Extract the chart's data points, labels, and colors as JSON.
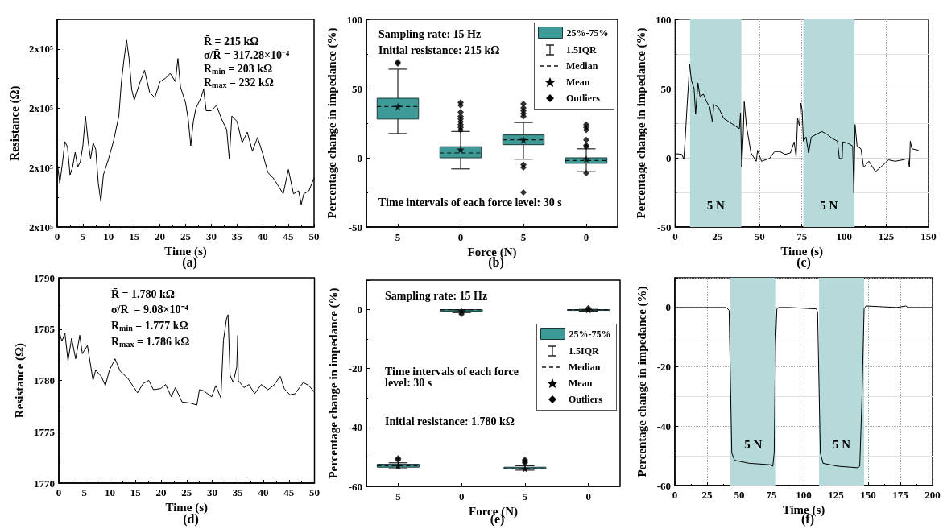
{
  "chart_data": [
    {
      "type": "line",
      "title": "(a)",
      "xlabel": "Time (s)",
      "ylabel": "Resistance (Ω)",
      "marker": "none",
      "grid": false,
      "xlim": [
        0,
        50
      ],
      "xticks": [
        0,
        5,
        10,
        15,
        20,
        25,
        30,
        35,
        40,
        45,
        50
      ],
      "ylim": [
        200000,
        235000
      ],
      "yticks": [
        {
          "value": 200000,
          "label": "2x10⁵"
        },
        {
          "value": 210000,
          "label": "2x10⁵"
        },
        {
          "value": 220000,
          "label": "2x10⁵"
        },
        {
          "value": 230000,
          "label": "2x10⁵"
        }
      ],
      "annotations": [
        "R̄ = 215 kΩ",
        "σ/R̄ = 317.28×10⁻⁴",
        "R$_{min}$ = 203 kΩ",
        "R$_{max}$ = 232 kΩ"
      ],
      "series": [
        {
          "color": "#000000",
          "x": [
            0,
            0.5,
            1,
            1.5,
            2,
            2.5,
            3,
            3.5,
            4,
            4.5,
            5,
            5.5,
            6,
            6.5,
            7,
            7.5,
            8,
            8.5,
            9,
            10,
            11,
            12,
            12.5,
            13,
            13.5,
            14,
            14.5,
            15,
            16,
            17,
            18,
            19,
            20,
            21,
            22,
            23,
            23.5,
            24,
            25,
            25.5,
            26,
            26.5,
            27,
            28,
            28.5,
            29,
            30,
            31,
            32,
            33,
            33.5,
            34,
            35,
            36,
            37,
            38,
            39,
            40,
            41,
            42,
            43,
            44,
            45,
            46,
            47,
            47.5,
            48,
            49,
            50
          ],
          "values": [
            211000,
            207400,
            210600,
            214400,
            213500,
            208800,
            210100,
            212600,
            210100,
            211000,
            213700,
            218700,
            214600,
            211500,
            214200,
            213100,
            207400,
            204300,
            208800,
            211500,
            214600,
            218700,
            224500,
            228200,
            231500,
            228400,
            223200,
            221400,
            224100,
            226400,
            222700,
            221800,
            224500,
            225000,
            225900,
            224500,
            228400,
            223600,
            220900,
            218200,
            213700,
            217800,
            220000,
            221800,
            223200,
            219600,
            219600,
            220500,
            218200,
            216400,
            211500,
            218700,
            217800,
            214200,
            216000,
            212800,
            215100,
            212400,
            209200,
            208300,
            207000,
            205600,
            209700,
            205600,
            206100,
            203800,
            205600,
            206100,
            208300
          ]
        }
      ]
    },
    {
      "type": "box",
      "title": "(b)",
      "xlabel": "Force (N)",
      "ylabel": "Percentage change in impedance (%)",
      "grid": false,
      "legend": "top right",
      "categories": [
        "5",
        "0",
        "5",
        "0"
      ],
      "ylim": [
        -50,
        100
      ],
      "yticks": [
        -50,
        0,
        50,
        100
      ],
      "annotations": [
        "Sampling rate: 15 Hz",
        "Initial resistance: 215 kΩ",
        "Time intervals of each force level: 30 s",
        "1.5IQR",
        "Median",
        "Mean",
        "Outliers"
      ],
      "series": [
        {
          "name": "25%-75%",
          "color": "#3d9a97",
          "boxes": [
            {
              "low": 17.5,
              "q1": 28,
              "median": 37,
              "q3": 43,
              "high": 64,
              "mean": 37,
              "outliers": [
                68,
                69
              ]
            },
            {
              "low": -8,
              "q1": 0,
              "median": 3.5,
              "q3": 8,
              "high": 19,
              "mean": 6,
              "outliers": [
                20,
                22,
                24,
                26,
                28,
                30,
                33,
                38,
                40
              ]
            },
            {
              "low": -1,
              "q1": 9.5,
              "median": 13,
              "q3": 16.5,
              "high": 25.5,
              "mean": 13,
              "outliers": [
                -25,
                -7,
                -5,
                30,
                32,
                34,
                36,
                39
              ]
            },
            {
              "low": -10,
              "q1": -4,
              "median": -2,
              "q3": 0,
              "high": 6.5,
              "mean": -1,
              "outliers": [
                -11,
                8,
                9,
                13,
                20,
                22,
                24
              ]
            }
          ]
        }
      ]
    },
    {
      "type": "line",
      "title": "(c)",
      "xlabel": "Time (s)",
      "ylabel": "Percentage change in impedance (%)",
      "marker": "none",
      "grid": true,
      "xlim": [
        0,
        150
      ],
      "xticks": [
        0,
        25,
        50,
        75,
        100,
        125,
        150
      ],
      "ylim": [
        -50,
        100
      ],
      "yticks": [
        -50,
        0,
        50,
        100
      ],
      "bands": [
        {
          "axis": "x",
          "from": 8.8,
          "to": 39.2,
          "label": "5 N",
          "color": "#b6dada"
        },
        {
          "axis": "x",
          "from": 75.9,
          "to": 106.2,
          "label": "5 N",
          "color": "#b6dada"
        }
      ],
      "series": [
        {
          "color": "#000000",
          "x": [
            0,
            3.9,
            5.1,
            5.9,
            7,
            8,
            8.5,
            9.6,
            11.2,
            12.1,
            13.5,
            14.7,
            16.7,
            18.6,
            20.5,
            22,
            22.9,
            25.6,
            28.7,
            31.8,
            35.6,
            38,
            38.7,
            39.4,
            40.3,
            40.9,
            42.2,
            44.9,
            48,
            48.8,
            51.1,
            55.8,
            58.9,
            62,
            65.1,
            68.2,
            70.5,
            71.6,
            72.5,
            73.6,
            74.4,
            75.2,
            75.9,
            77.5,
            79,
            80.6,
            83.7,
            86.8,
            89.9,
            93,
            96.1,
            97.2,
            98.9,
            99.2,
            102.3,
            105.1,
            105.8,
            106.5,
            107.7,
            110,
            111.6,
            114.7,
            118.6,
            122.4,
            126.3,
            130.2,
            134.8,
            137.9,
            138.7,
            139.2,
            140.2,
            144.1
          ],
          "values": [
            3,
            2.5,
            -1,
            13,
            36.5,
            56,
            68,
            56,
            50,
            31.5,
            54,
            44,
            46,
            40.5,
            36.5,
            26,
            38.5,
            36.5,
            28.5,
            26,
            23,
            21,
            32.5,
            -7,
            17,
            40.5,
            23,
            3.5,
            -2.5,
            5.5,
            -2.5,
            -0.5,
            4.5,
            4.5,
            2.5,
            3.5,
            11.5,
            0.5,
            28.5,
            23,
            39.5,
            34.5,
            12,
            15,
            3.5,
            15,
            17,
            19,
            17,
            14,
            12,
            -0.5,
            -0.5,
            11.5,
            10.5,
            8.5,
            -25.5,
            24,
            8.5,
            6.5,
            -7,
            -2.5,
            -10,
            -6,
            -1.5,
            -2.5,
            -1.5,
            -0.5,
            -7,
            12,
            6.5,
            5.5
          ]
        }
      ]
    },
    {
      "type": "line",
      "title": "(d)",
      "xlabel": "Time (s)",
      "ylabel": "Resistance (Ω)",
      "marker": "none",
      "grid": false,
      "xlim": [
        0,
        50
      ],
      "xticks": [
        0,
        5,
        10,
        15,
        20,
        25,
        30,
        35,
        40,
        45,
        50
      ],
      "ylim": [
        1770,
        1790
      ],
      "yticks": [
        1770,
        1775,
        1780,
        1785,
        1790
      ],
      "annotations": [
        "R̄ = 1.780 kΩ",
        "σ/R̄  = 9.08×10⁻⁴",
        "R$_{min}$ = 1.777 kΩ",
        "R$_{max}$ = 1.786 kΩ"
      ],
      "series": [
        {
          "color": "#000000",
          "x": [
            0,
            0.6,
            1.2,
            1.8,
            2.5,
            3.3,
            4.1,
            4.6,
            5.6,
            6.7,
            7.2,
            8.3,
            9.1,
            9.9,
            11,
            12,
            13.5,
            15.4,
            16.5,
            17.6,
            18.5,
            19.9,
            20.9,
            22,
            22.8,
            24.1,
            25.7,
            27,
            27.5,
            28.3,
            29.9,
            30.7,
            31.7,
            32.2,
            32.8,
            33.1,
            33.5,
            34.1,
            34.8,
            35,
            35.1,
            36.2,
            37.2,
            38.3,
            39.6,
            40.9,
            42,
            43.3,
            44.1,
            45.2,
            46.2,
            47.8,
            48.9,
            49.9
          ],
          "values": [
            1784.9,
            1783.8,
            1784.6,
            1781.9,
            1784.1,
            1782.1,
            1784.4,
            1782.6,
            1783.4,
            1780,
            1781,
            1780.4,
            1779.5,
            1781,
            1782.1,
            1780.9,
            1780.2,
            1778.8,
            1779.7,
            1780,
            1779.1,
            1779.2,
            1779.6,
            1778.4,
            1779.3,
            1777.9,
            1777.8,
            1777.6,
            1779.1,
            1779,
            1778.4,
            1779.5,
            1778.3,
            1783.9,
            1786,
            1786.4,
            1780.5,
            1779.8,
            1781.3,
            1784.4,
            1780,
            1779.3,
            1779.6,
            1778.7,
            1779.6,
            1779.1,
            1779.5,
            1780.4,
            1779.2,
            1778.6,
            1778.7,
            1779.8,
            1779.5,
            1778.9
          ]
        }
      ]
    },
    {
      "type": "box",
      "title": "(e)",
      "xlabel": "Force (N)",
      "ylabel": "Percentage change in impedance (%)",
      "grid": false,
      "legend": "right",
      "categories": [
        "5",
        "0",
        "5",
        "0"
      ],
      "ylim": [
        -60,
        10
      ],
      "yticks": [
        -60,
        -40,
        -20,
        0
      ],
      "annotations": [
        "Sampling rate: 15 Hz",
        "Time intervals of each force level: 30 s",
        "Initial resistance: 1.780 kΩ",
        "1.5IQR",
        "Median",
        "Mean",
        "Outliers"
      ],
      "series": [
        {
          "name": "25%-75%",
          "color": "#3d9a97",
          "boxes": [
            {
              "low": -54,
              "q1": -53.5,
              "median": -53,
              "q3": -52.5,
              "high": -52,
              "mean": -53,
              "outliers": [
                -51,
                -50.5
              ]
            },
            {
              "low": -1,
              "q1": -0.5,
              "median": 0,
              "q3": 0,
              "high": 0,
              "mean": -0.5,
              "outliers": [
                -1.5
              ]
            },
            {
              "low": -54.5,
              "q1": -54,
              "median": -54,
              "q3": -53.5,
              "high": -53,
              "mean": -54,
              "outliers": [
                -52,
                -51.5,
                -51
              ]
            },
            {
              "low": -0.5,
              "q1": 0,
              "median": 0,
              "q3": 0,
              "high": 0.5,
              "mean": 0,
              "outliers": [
                0.5
              ]
            }
          ]
        }
      ]
    },
    {
      "type": "line",
      "title": "(f)",
      "xlabel": "Time (s)",
      "ylabel": "Percentage change in impedance (%)",
      "marker": "none",
      "grid": true,
      "xlim": [
        0,
        200
      ],
      "xticks": [
        0,
        25,
        50,
        75,
        100,
        125,
        150,
        175,
        200
      ],
      "ylim": [
        -60,
        10
      ],
      "yticks": [
        -60,
        -40,
        -20,
        0
      ],
      "bands": [
        {
          "axis": "x",
          "from": 43.1,
          "to": 78.5,
          "label": "5 N",
          "color": "#b6dada"
        },
        {
          "axis": "x",
          "from": 111.9,
          "to": 146.9,
          "label": "5 N",
          "color": "#b6dada"
        }
      ],
      "series": [
        {
          "color": "#000000",
          "x": [
            0,
            40,
            42.1,
            44.2,
            46.3,
            57.7,
            74.4,
            76,
            77.1,
            78.1,
            79.2,
            80.6,
            89,
            109.8,
            110.8,
            112.9,
            115,
            126.5,
            142.1,
            143.5,
            145.2,
            146.9,
            148.3,
            172,
            179.6,
            180.6,
            199.4
          ],
          "values": [
            0,
            0,
            -1,
            -49,
            -51.5,
            -52.5,
            -53,
            -53.5,
            -49,
            -12.5,
            -0.5,
            0,
            0,
            -0.5,
            -1.5,
            -49,
            -52.5,
            -53.5,
            -54,
            -53.5,
            -31,
            -0.5,
            0.5,
            0,
            0.5,
            0,
            0
          ]
        }
      ]
    }
  ]
}
